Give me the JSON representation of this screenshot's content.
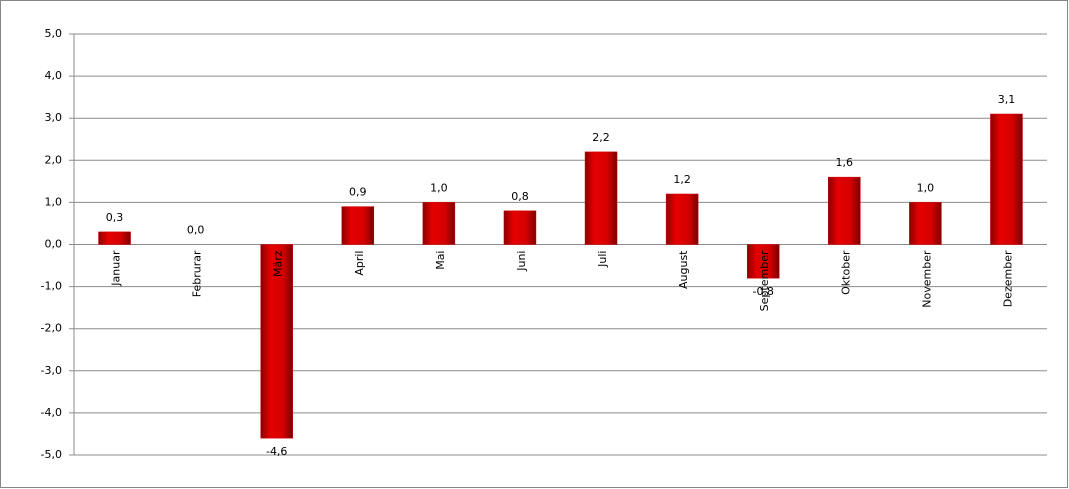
{
  "chart_data": {
    "type": "bar",
    "categories": [
      "Januar",
      "Februrar",
      "März",
      "April",
      "Mai",
      "Juni",
      "Juli",
      "August",
      "September",
      "Oktober",
      "November",
      "Dezember"
    ],
    "values": [
      0.3,
      0.0,
      -4.6,
      0.9,
      1.0,
      0.8,
      2.2,
      1.2,
      -0.8,
      1.6,
      1.0,
      3.1
    ],
    "value_labels": [
      "0,3",
      "0,0",
      "-4,6",
      "0,9",
      "1,0",
      "0,8",
      "2,2",
      "1,2",
      "-0,8",
      "1,6",
      "1,0",
      "3,1"
    ],
    "color": "#cc0000",
    "ylim": [
      -5,
      5
    ],
    "yticks": [
      {
        "value": -5,
        "label": "-5,0"
      },
      {
        "value": -4,
        "label": "-4,0"
      },
      {
        "value": -3,
        "label": "-3,0"
      },
      {
        "value": -2,
        "label": "-2,0"
      },
      {
        "value": -1,
        "label": "-1,0"
      },
      {
        "value": 0,
        "label": "0,0"
      },
      {
        "value": 1,
        "label": "1,0"
      },
      {
        "value": 2,
        "label": "2,0"
      },
      {
        "value": 3,
        "label": "3,0"
      },
      {
        "value": 4,
        "label": "4,0"
      },
      {
        "value": 5,
        "label": "5,0"
      }
    ],
    "grid": true
  }
}
